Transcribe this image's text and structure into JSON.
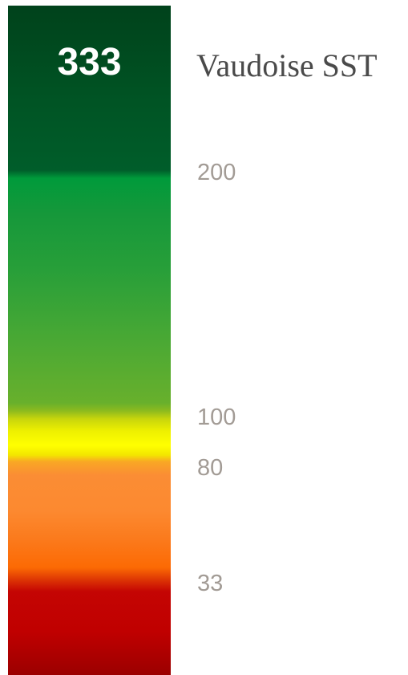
{
  "chart_data": {
    "type": "gauge",
    "title": "Vaudoise SST",
    "value": "333",
    "thresholds": [
      {
        "label": "200",
        "value": 200
      },
      {
        "label": "100",
        "value": 100
      },
      {
        "label": "80",
        "value": 80
      },
      {
        "label": "33",
        "value": 33
      }
    ],
    "colors": {
      "dark_green": "#005424",
      "green": "#009a3b",
      "light_green": "#68b02c",
      "yellow": "#ffff00",
      "orange": "#fc8930",
      "deep_orange": "#fc6a04",
      "red": "#c00000",
      "dark_red": "#9b0000"
    }
  }
}
